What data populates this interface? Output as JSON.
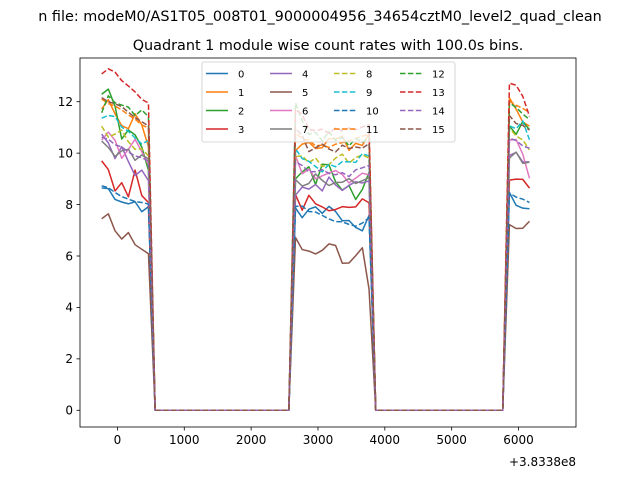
{
  "figure": {
    "suptitle": "n file: modeM0/AS1T05_008T01_9000004956_34654cztM0_level2_quad_clean",
    "title": "Quadrant 1 module wise count rates with 100.0s bins.",
    "offset_label": "+3.8338e8"
  },
  "chart_data": {
    "type": "line",
    "title": "Quadrant 1 module wise count rates with 100.0s bins.",
    "xlabel": "",
    "ylabel": "",
    "x_offset": 383380000,
    "xlim": [
      -560,
      6860
    ],
    "ylim": [
      -0.65,
      13.7
    ],
    "x_ticks": [
      0,
      1000,
      2000,
      3000,
      4000,
      5000,
      6000
    ],
    "y_ticks": [
      0,
      2,
      4,
      6,
      8,
      10,
      12
    ],
    "grid": false,
    "legend_position": "top-center",
    "legend_columns": 4,
    "x": [
      -236,
      -136,
      -36,
      64,
      164,
      264,
      364,
      464,
      564,
      664,
      764,
      864,
      964,
      1064,
      1164,
      1264,
      1364,
      1464,
      1564,
      1664,
      1764,
      1864,
      1964,
      2064,
      2164,
      2264,
      2364,
      2464,
      2564,
      2664,
      2764,
      2864,
      2964,
      3064,
      3164,
      3264,
      3364,
      3464,
      3564,
      3664,
      3764,
      3864,
      3964,
      4064,
      4164,
      4264,
      4364,
      4464,
      4564,
      4664,
      4764,
      4864,
      4964,
      5064,
      5164,
      5264,
      5364,
      5464,
      5564,
      5664,
      5764,
      5864,
      5964,
      6064,
      6164,
      6264,
      6364,
      6464
    ],
    "series": [
      {
        "name": "0",
        "color": "#1f77b4",
        "dash": "solid",
        "active": [
          8.65,
          8.62,
          8.2,
          8.1,
          8.03,
          8.11,
          7.72,
          7.92,
          7.87,
          7.49,
          7.82,
          7.91,
          7.66,
          7.93,
          7.73,
          7.37,
          7.38,
          7.11,
          6.98,
          7.58,
          8.47,
          7.97,
          7.86,
          7.84
        ]
      },
      {
        "name": "1",
        "color": "#ff7f0e",
        "dash": "solid",
        "active": [
          11.72,
          12.08,
          11.53,
          11.07,
          10.95,
          11.53,
          11.1,
          10.25,
          10.1,
          10.35,
          10.42,
          10.18,
          10.21,
          10.57,
          10.55,
          10.66,
          10.11,
          10.38,
          10.3,
          10.75,
          12.15,
          11.71,
          11.21,
          11.05
        ]
      },
      {
        "name": "2",
        "color": "#2ca02c",
        "dash": "solid",
        "active": [
          12.29,
          12.49,
          11.83,
          10.55,
          10.9,
          10.71,
          10.24,
          9.33,
          9.0,
          9.27,
          9.47,
          8.78,
          9.57,
          9.55,
          8.88,
          8.56,
          8.74,
          8.2,
          8.59,
          9.25,
          11.06,
          10.73,
          11.23,
          10.91
        ]
      },
      {
        "name": "3",
        "color": "#d62728",
        "dash": "solid",
        "active": [
          9.7,
          9.36,
          8.53,
          8.85,
          8.3,
          9.34,
          8.35,
          8.08,
          8.39,
          7.78,
          8.36,
          8.03,
          7.91,
          7.76,
          7.81,
          7.92,
          7.89,
          7.91,
          8.22,
          8.07,
          8.95,
          8.99,
          8.98,
          8.64
        ]
      },
      {
        "name": "4",
        "color": "#9467bd",
        "dash": "solid",
        "active": [
          10.74,
          10.4,
          9.79,
          10.25,
          9.67,
          9.13,
          9.34,
          8.93,
          8.37,
          8.68,
          8.6,
          8.78,
          8.53,
          9.07,
          8.76,
          8.55,
          8.75,
          8.89,
          8.84,
          8.92,
          9.91,
          10.03,
          9.66,
          9.66
        ]
      },
      {
        "name": "5",
        "color": "#8c564b",
        "dash": "solid",
        "active": [
          7.45,
          7.64,
          6.98,
          6.66,
          6.91,
          6.44,
          6.26,
          6.09,
          6.72,
          6.25,
          6.19,
          6.08,
          6.22,
          6.47,
          6.41,
          5.72,
          5.73,
          6.01,
          6.32,
          4.71,
          7.22,
          7.07,
          7.08,
          7.35
        ]
      },
      {
        "name": "6",
        "color": "#e377c2",
        "dash": "solid",
        "active": [
          10.51,
          10.82,
          10.5,
          9.8,
          10.15,
          10.54,
          10.06,
          9.55,
          9.9,
          9.2,
          9.38,
          9.0,
          9.12,
          9.23,
          9.32,
          9.17,
          8.84,
          9.03,
          9.22,
          9.15,
          10.51,
          10.53,
          9.96,
          9.02
        ]
      },
      {
        "name": "7",
        "color": "#7f7f7f",
        "dash": "solid",
        "active": [
          10.47,
          10.22,
          9.87,
          10.09,
          10.15,
          9.72,
          9.93,
          9.78,
          8.97,
          8.72,
          8.82,
          9.19,
          8.94,
          8.74,
          8.86,
          8.87,
          9.01,
          8.82,
          8.93,
          9.05,
          9.81,
          10.04,
          9.6,
          9.65
        ]
      },
      {
        "name": "8",
        "color": "#bcbd22",
        "dash": "dashed",
        "active": [
          11.05,
          10.62,
          10.74,
          10.9,
          10.44,
          10.15,
          10.17,
          9.9,
          9.87,
          9.89,
          9.63,
          9.81,
          9.48,
          9.55,
          9.81,
          9.96,
          9.61,
          9.83,
          9.93,
          9.81,
          10.97,
          10.67,
          10.51,
          10.13
        ]
      },
      {
        "name": "9",
        "color": "#17becf",
        "dash": "dashed",
        "active": [
          11.36,
          11.47,
          11.42,
          11.01,
          10.85,
          10.59,
          10.36,
          10.49,
          10.17,
          9.79,
          9.68,
          9.48,
          9.27,
          9.57,
          9.47,
          9.67,
          9.66,
          9.64,
          9.98,
          9.89,
          11.06,
          10.95,
          11.25,
          10.52
        ]
      },
      {
        "name": "10",
        "color": "#1f77b4",
        "dash": "dashed",
        "active": [
          8.73,
          8.66,
          8.47,
          8.31,
          8.21,
          8.12,
          8.08,
          8.02,
          7.93,
          7.94,
          7.73,
          7.71,
          7.58,
          7.44,
          7.34,
          7.33,
          7.23,
          7.16,
          7.28,
          7.49,
          8.45,
          8.29,
          8.21,
          8.08
        ]
      },
      {
        "name": "11",
        "color": "#ff7f0e",
        "dash": "dashed",
        "active": [
          12.1,
          11.93,
          11.83,
          11.68,
          11.49,
          11.32,
          11.1,
          10.97,
          10.78,
          10.56,
          10.5,
          10.28,
          10.31,
          10.22,
          10.35,
          10.41,
          10.48,
          10.58,
          10.66,
          10.73,
          12.02,
          11.86,
          11.74,
          11.58
        ]
      },
      {
        "name": "12",
        "color": "#2ca02c",
        "dash": "dashed",
        "active": [
          11.57,
          12.23,
          11.96,
          11.87,
          11.79,
          11.46,
          11.68,
          11.42,
          11.95,
          11.26,
          10.73,
          10.81,
          10.47,
          10.84,
          10.49,
          10.62,
          10.28,
          10.57,
          10.43,
          10.61,
          11.96,
          11.78,
          11.52,
          11.31
        ]
      },
      {
        "name": "13",
        "color": "#d62728",
        "dash": "dashed",
        "active": [
          13.08,
          13.28,
          13.15,
          12.82,
          12.61,
          12.38,
          12.09,
          11.95,
          11.7,
          11.5,
          10.92,
          10.88,
          10.93,
          10.77,
          10.98,
          10.86,
          10.98,
          10.91,
          11.02,
          11.1,
          12.72,
          12.64,
          12.21,
          11.43
        ]
      },
      {
        "name": "14",
        "color": "#9467bd",
        "dash": "dashed",
        "active": [
          10.62,
          10.54,
          10.33,
          10.24,
          10.05,
          9.89,
          9.82,
          9.7,
          9.66,
          9.52,
          9.27,
          9.28,
          9.36,
          9.21,
          9.16,
          9.24,
          9.09,
          9.35,
          9.43,
          9.52,
          10.58,
          10.49,
          10.28,
          10.19
        ]
      },
      {
        "name": "15",
        "color": "#8c564b",
        "dash": "dashed",
        "active": [
          12.16,
          12.0,
          11.92,
          11.81,
          11.59,
          11.38,
          11.22,
          11.06,
          10.98,
          10.68,
          10.06,
          10.21,
          10.35,
          10.16,
          10.05,
          10.31,
          10.18,
          10.24,
          10.19,
          10.37,
          11.46,
          11.15,
          11.08,
          10.9
        ]
      }
    ]
  }
}
